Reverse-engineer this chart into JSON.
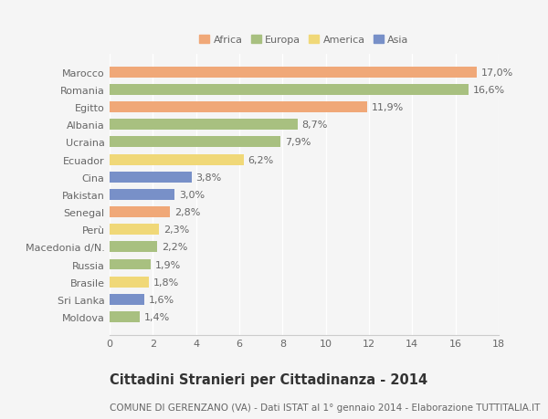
{
  "countries": [
    "Marocco",
    "Romania",
    "Egitto",
    "Albania",
    "Ucraina",
    "Ecuador",
    "Cina",
    "Pakistan",
    "Senegal",
    "Perù",
    "Macedonia d/N.",
    "Russia",
    "Brasile",
    "Sri Lanka",
    "Moldova"
  ],
  "values": [
    17.0,
    16.6,
    11.9,
    8.7,
    7.9,
    6.2,
    3.8,
    3.0,
    2.8,
    2.3,
    2.2,
    1.9,
    1.8,
    1.6,
    1.4
  ],
  "regions": [
    "Africa",
    "Europa",
    "Africa",
    "Europa",
    "Europa",
    "America",
    "Asia",
    "Asia",
    "Africa",
    "America",
    "Europa",
    "Europa",
    "America",
    "Asia",
    "Europa"
  ],
  "region_colors": {
    "Africa": "#F0A878",
    "Europa": "#A8C080",
    "America": "#F0D878",
    "Asia": "#7890C8"
  },
  "legend_order": [
    "Africa",
    "Europa",
    "America",
    "Asia"
  ],
  "title": "Cittadini Stranieri per Cittadinanza - 2014",
  "subtitle": "COMUNE DI GERENZANO (VA) - Dati ISTAT al 1° gennaio 2014 - Elaborazione TUTTITALIA.IT",
  "xlim": [
    0,
    18
  ],
  "xticks": [
    0,
    2,
    4,
    6,
    8,
    10,
    12,
    14,
    16,
    18
  ],
  "background_color": "#f5f5f5",
  "bar_height": 0.62,
  "label_fontsize": 8,
  "ytick_fontsize": 8,
  "xtick_fontsize": 8,
  "title_fontsize": 10.5,
  "subtitle_fontsize": 7.5
}
